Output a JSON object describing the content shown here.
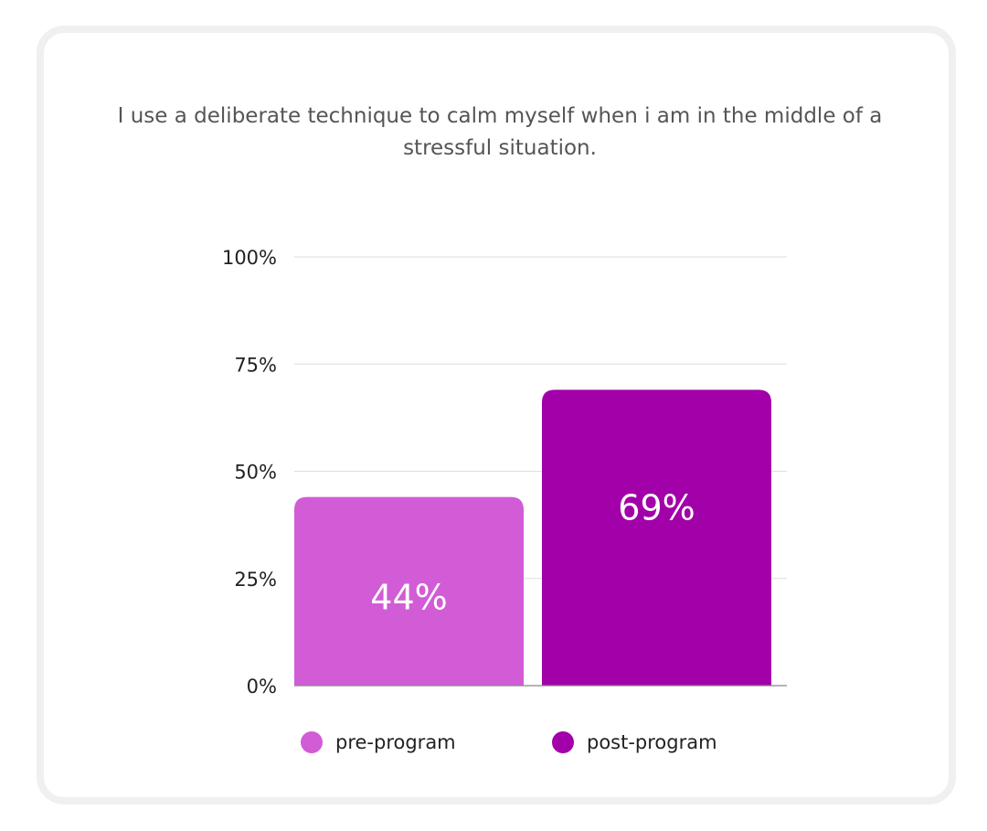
{
  "chart_data": {
    "type": "bar",
    "title": "I use a deliberate technique to calm myself when i am in the middle of a stressful situation.",
    "categories": [
      "pre-program",
      "post-program"
    ],
    "values": [
      44,
      69
    ],
    "data_labels": [
      "44%",
      "69%"
    ],
    "colors": [
      "#d15cd6",
      "#a200a8"
    ],
    "ylim": [
      0,
      100
    ],
    "yticks": [
      0,
      25,
      50,
      75,
      100
    ],
    "ytick_labels": [
      "0%",
      "25%",
      "50%",
      "75%",
      "100%"
    ],
    "grid": true,
    "legend": {
      "position": "bottom",
      "entries": [
        {
          "label": "pre-program",
          "color": "#d15cd6"
        },
        {
          "label": "post-program",
          "color": "#a200a8"
        }
      ]
    }
  }
}
